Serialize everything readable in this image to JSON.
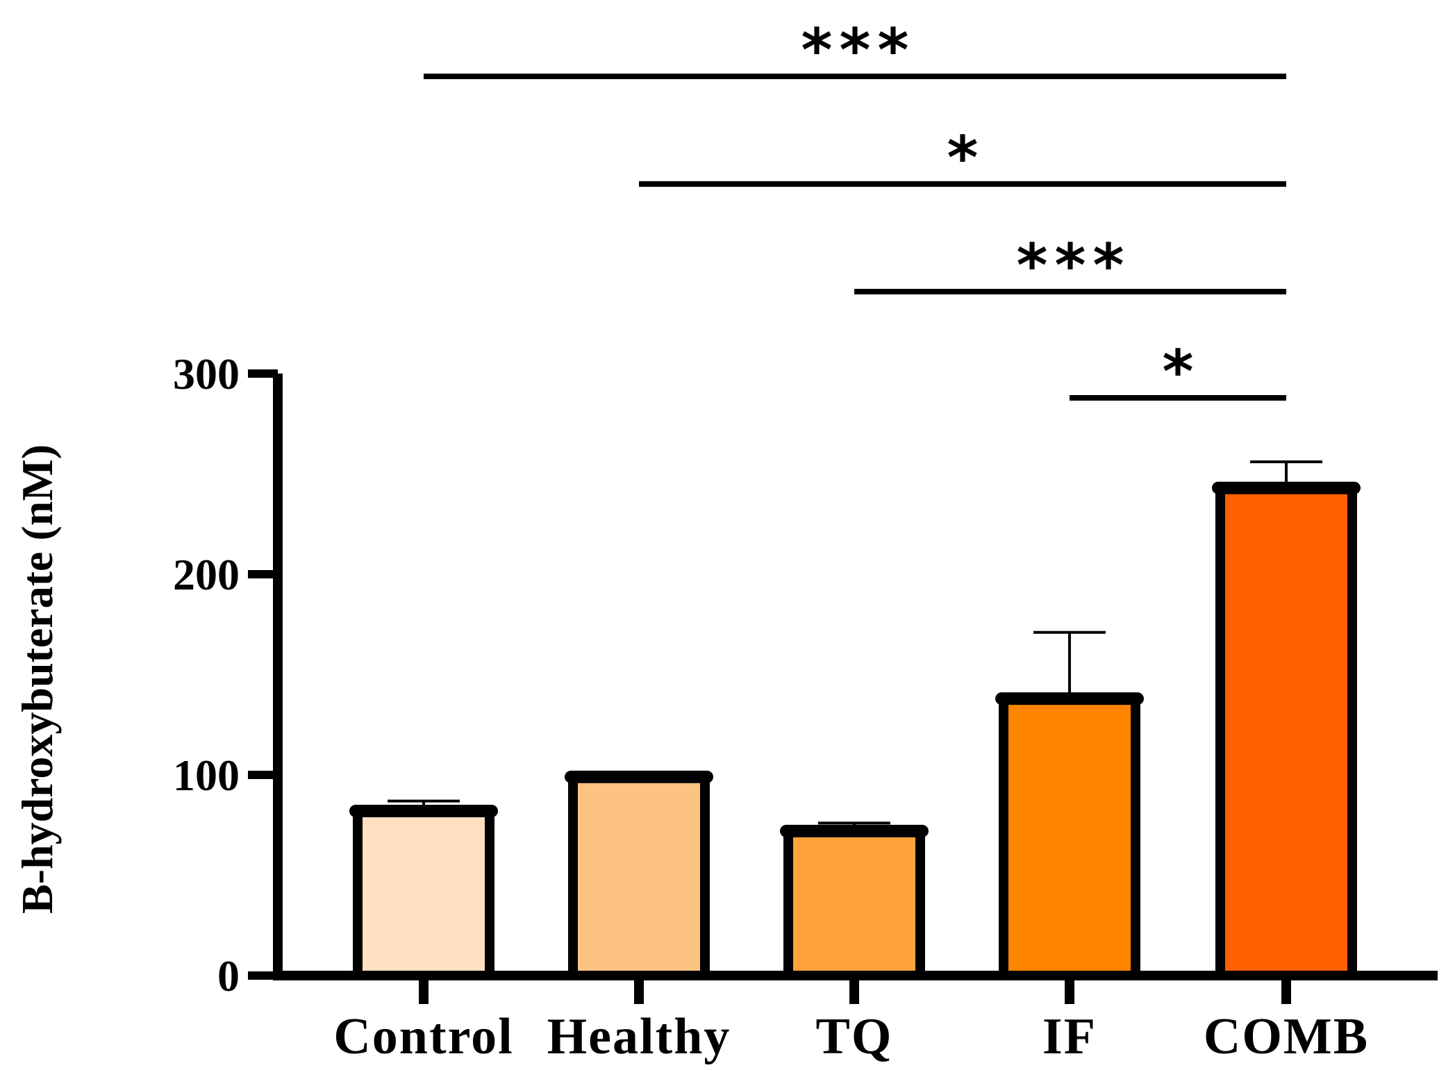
{
  "chart_data": {
    "type": "bar",
    "title": "",
    "xlabel": "",
    "ylabel": "B-hydroxybuterate (nM)",
    "ylim": [
      0,
      300
    ],
    "yticks": [
      0,
      100,
      200,
      300
    ],
    "yticks_text": [
      "0",
      "100",
      "200",
      "300"
    ],
    "categories": [
      "Control",
      "Healthy",
      "TQ",
      "IF",
      "COMB"
    ],
    "values": [
      82,
      99,
      72,
      138,
      243
    ],
    "errors": [
      5,
      0,
      4,
      33,
      13
    ],
    "colors": [
      "#FFE0C2",
      "#FDC383",
      "#FDA33A",
      "#FF8400",
      "#FF6002"
    ],
    "grid": false,
    "significance": [
      {
        "from": "Control",
        "to": "COMB",
        "label": "***"
      },
      {
        "from": "Healthy",
        "to": "COMB",
        "label": "*"
      },
      {
        "from": "TQ",
        "to": "COMB",
        "label": "***"
      },
      {
        "from": "IF",
        "to": "COMB",
        "label": "*"
      }
    ]
  }
}
